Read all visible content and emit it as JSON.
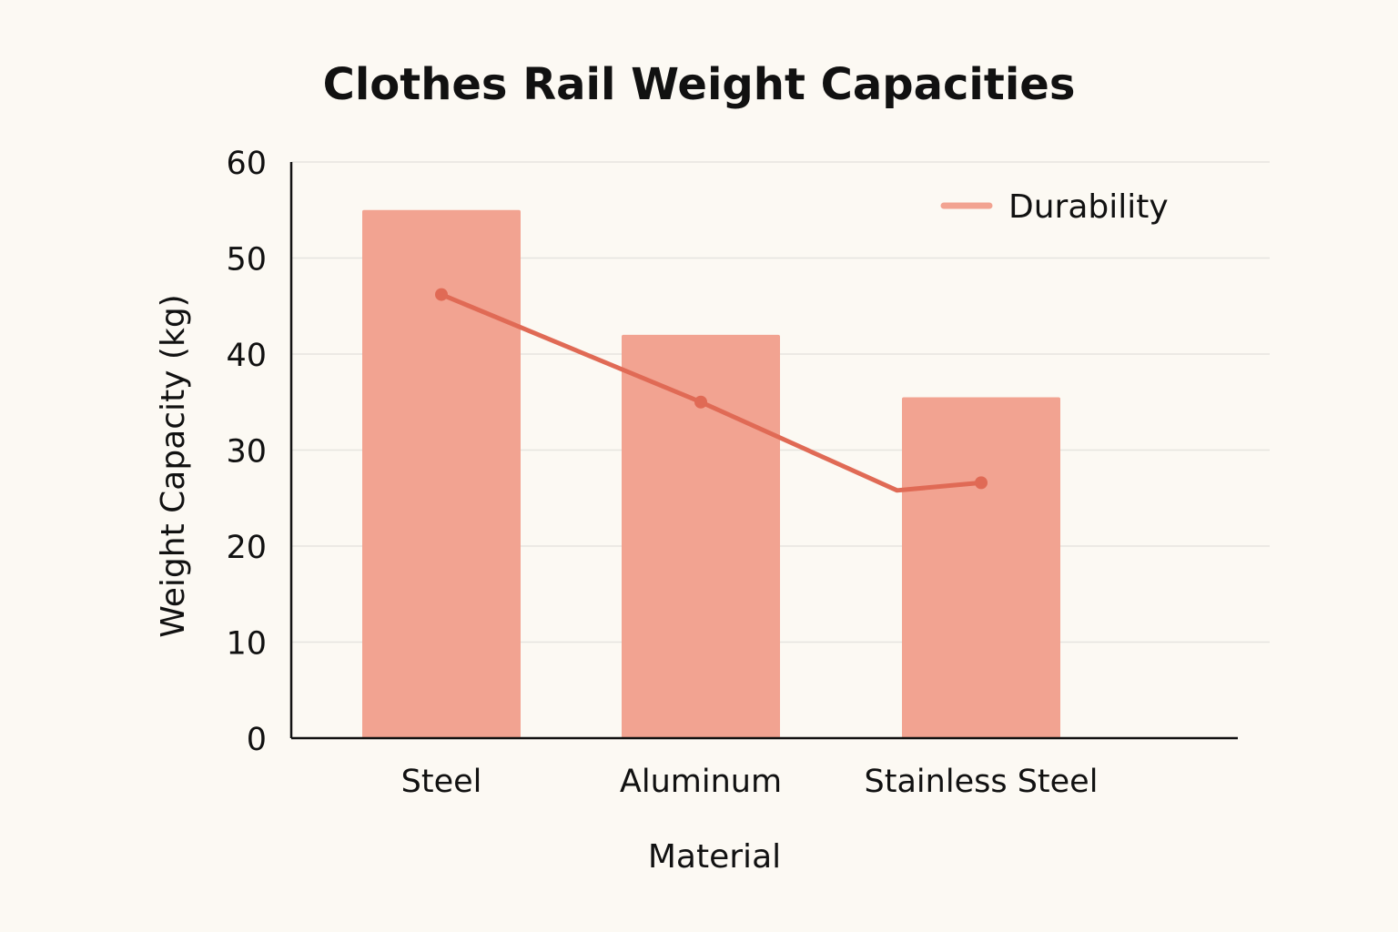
{
  "chart_data": {
    "type": "bar",
    "title": "Clothes Rail Weight Capacities",
    "xlabel": "Material",
    "ylabel": "Weight Capacity (kg)",
    "categories": [
      "Steel",
      "Aluminum",
      "Stainless Steel"
    ],
    "ylim": [
      0,
      60
    ],
    "yticks": [
      0,
      10,
      20,
      30,
      40,
      50,
      60
    ],
    "grid": true,
    "legend_position": "top-right",
    "series": [
      {
        "type": "bar",
        "values": [
          55,
          42,
          35.5
        ],
        "color": "#f2a391"
      },
      {
        "type": "line",
        "name": "Durability",
        "points": [
          {
            "x": 0,
            "y": 46.2
          },
          {
            "x": 1,
            "y": 35
          },
          {
            "x": 1.7,
            "y": 25.8
          },
          {
            "x": 2,
            "y": 26.6
          }
        ],
        "marker_indices": [
          0,
          1,
          3
        ],
        "color": "#e06a55"
      }
    ]
  }
}
